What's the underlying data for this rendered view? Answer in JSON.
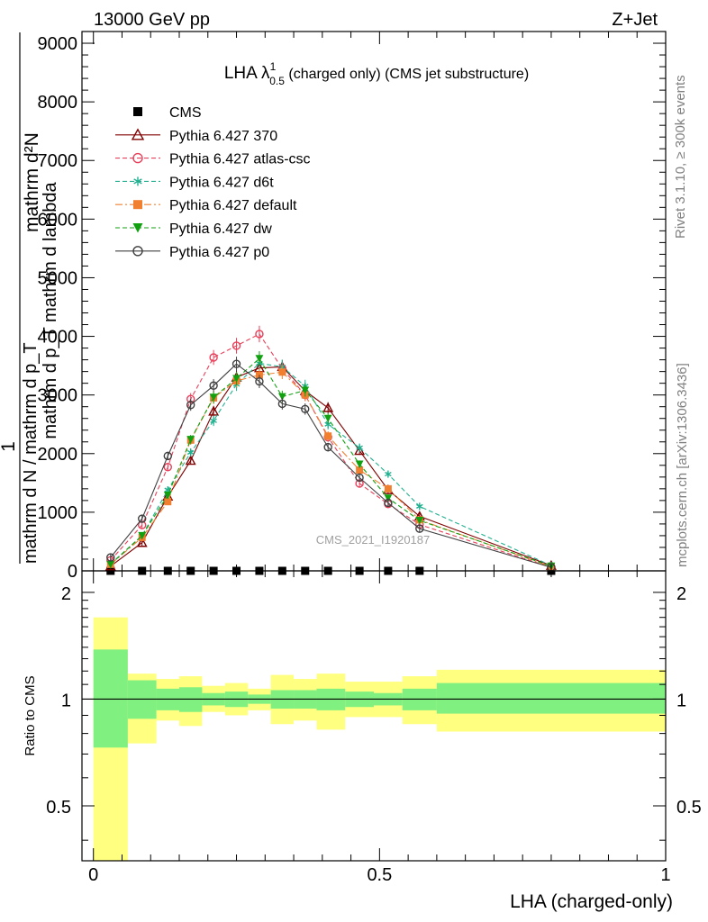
{
  "header": {
    "energy_label": "13000 GeV pp",
    "process_label": "Z+Jet"
  },
  "side_labels": {
    "rivet": "Rivet 3.1.10, ≥ 300k events",
    "mcplots": "mcplots.cern.ch [arXiv:1306.3436]"
  },
  "watermark": "CMS_2021_I1920187",
  "chart_data": [
    {
      "type": "line",
      "title": "LHA λ¹₀.₅ (charged only) (CMS jet substructure)",
      "title_main": "LHA λ",
      "title_sup": "1",
      "title_sub": "0.5",
      "title_rest": " (charged only) (CMS jet substructure)",
      "ylabel_lines": [
        "mathrm d²N",
        "mathrm d p_T mathrm d lambda",
        "1",
        "mathrm d N / mathrm d p_T"
      ],
      "xlim": [
        -0.02,
        1.0
      ],
      "ylim": [
        0,
        9200
      ],
      "y_ticks": [
        0,
        1000,
        2000,
        3000,
        4000,
        5000,
        6000,
        7000,
        8000,
        9000
      ],
      "y_tick_labels": [
        "0",
        "1000",
        "2000",
        "3000",
        "4000",
        "5000",
        "6000",
        "7000",
        "8000",
        "9000"
      ],
      "grid": false,
      "legend_position": "top-left",
      "x": [
        0.03,
        0.085,
        0.13,
        0.17,
        0.21,
        0.25,
        0.29,
        0.33,
        0.37,
        0.41,
        0.465,
        0.515,
        0.57,
        0.8
      ],
      "series": [
        {
          "name": "CMS",
          "color": "#000000",
          "style": "none",
          "marker": "square",
          "values": [
            0,
            0,
            0,
            0,
            0,
            0,
            0,
            0,
            0,
            0,
            0,
            0,
            0,
            0
          ]
        },
        {
          "name": "Pythia 6.427 370",
          "color": "#800000",
          "style": "solid",
          "marker": "triangle-open",
          "values": [
            80,
            480,
            1270,
            1880,
            2720,
            3300,
            3460,
            3480,
            3070,
            2780,
            2050,
            1380,
            930,
            90
          ]
        },
        {
          "name": "Pythia 6.427 atlas-csc",
          "color": "#e8405a",
          "style": "dashed",
          "marker": "circle-open",
          "values": [
            180,
            780,
            1770,
            2930,
            3640,
            3840,
            4040,
            3450,
            3000,
            2280,
            1490,
            1140,
            790,
            60
          ]
        },
        {
          "name": "Pythia 6.427 d6t",
          "color": "#20b090",
          "style": "dashed",
          "marker": "asterisk",
          "values": [
            120,
            600,
            1380,
            2020,
            2560,
            3180,
            3540,
            3480,
            3150,
            2500,
            2100,
            1650,
            1100,
            90
          ]
        },
        {
          "name": "Pythia 6.427 default",
          "color": "#f08030",
          "style": "dashdot",
          "marker": "square",
          "values": [
            110,
            570,
            1180,
            2230,
            2950,
            3240,
            3340,
            3390,
            3000,
            2300,
            1720,
            1400,
            870,
            70
          ]
        },
        {
          "name": "Pythia 6.427 dw",
          "color": "#10a010",
          "style": "dashed",
          "marker": "triangle-down",
          "values": [
            110,
            600,
            1290,
            2240,
            2960,
            3280,
            3620,
            2970,
            3080,
            2600,
            1820,
            1240,
            860,
            80
          ]
        },
        {
          "name": "Pythia 6.427 p0",
          "color": "#404040",
          "style": "solid",
          "marker": "circle-open",
          "values": [
            230,
            890,
            1960,
            2830,
            3160,
            3530,
            3230,
            2850,
            2760,
            2110,
            1590,
            1160,
            720,
            60
          ]
        }
      ]
    },
    {
      "type": "area",
      "ylabel": "Ratio to CMS",
      "xlabel": "LHA (charged-only)",
      "xlim": [
        -0.02,
        1.0
      ],
      "ylim": [
        0.35,
        2.3
      ],
      "y_scale": "log",
      "y_ticks": [
        0.5,
        1,
        2
      ],
      "y_tick_labels": [
        "0.5",
        "1",
        "2"
      ],
      "x_ticks": [
        0,
        0.5,
        1
      ],
      "x_tick_labels": [
        "0",
        "0.5",
        "1"
      ],
      "reference_line": 1,
      "bins": [
        {
          "lo": 0.0,
          "hi": 0.06,
          "stat_lo": 0.73,
          "stat_hi": 1.38,
          "tot_lo": 0.35,
          "tot_hi": 1.7
        },
        {
          "lo": 0.06,
          "hi": 0.11,
          "stat_lo": 0.88,
          "stat_hi": 1.13,
          "tot_lo": 0.75,
          "tot_hi": 1.18
        },
        {
          "lo": 0.11,
          "hi": 0.15,
          "stat_lo": 0.93,
          "stat_hi": 1.07,
          "tot_lo": 0.87,
          "tot_hi": 1.14
        },
        {
          "lo": 0.15,
          "hi": 0.19,
          "stat_lo": 0.92,
          "stat_hi": 1.08,
          "tot_lo": 0.84,
          "tot_hi": 1.16
        },
        {
          "lo": 0.19,
          "hi": 0.23,
          "stat_lo": 0.96,
          "stat_hi": 1.04,
          "tot_lo": 0.92,
          "tot_hi": 1.09
        },
        {
          "lo": 0.23,
          "hi": 0.27,
          "stat_lo": 0.95,
          "stat_hi": 1.05,
          "tot_lo": 0.9,
          "tot_hi": 1.11
        },
        {
          "lo": 0.27,
          "hi": 0.31,
          "stat_lo": 0.97,
          "stat_hi": 1.03,
          "tot_lo": 0.93,
          "tot_hi": 1.07
        },
        {
          "lo": 0.31,
          "hi": 0.35,
          "stat_lo": 0.94,
          "stat_hi": 1.06,
          "tot_lo": 0.85,
          "tot_hi": 1.17
        },
        {
          "lo": 0.35,
          "hi": 0.39,
          "stat_lo": 0.94,
          "stat_hi": 1.06,
          "tot_lo": 0.87,
          "tot_hi": 1.14
        },
        {
          "lo": 0.39,
          "hi": 0.44,
          "stat_lo": 0.93,
          "stat_hi": 1.07,
          "tot_lo": 0.82,
          "tot_hi": 1.18
        },
        {
          "lo": 0.44,
          "hi": 0.49,
          "stat_lo": 0.95,
          "stat_hi": 1.05,
          "tot_lo": 0.89,
          "tot_hi": 1.12
        },
        {
          "lo": 0.49,
          "hi": 0.54,
          "stat_lo": 0.96,
          "stat_hi": 1.04,
          "tot_lo": 0.89,
          "tot_hi": 1.12
        },
        {
          "lo": 0.54,
          "hi": 0.6,
          "stat_lo": 0.93,
          "stat_hi": 1.07,
          "tot_lo": 0.85,
          "tot_hi": 1.16
        },
        {
          "lo": 0.6,
          "hi": 1.0,
          "stat_lo": 0.91,
          "stat_hi": 1.11,
          "tot_lo": 0.81,
          "tot_hi": 1.21
        }
      ],
      "colors": {
        "stat": "#80f080",
        "total": "#ffff80"
      }
    }
  ]
}
